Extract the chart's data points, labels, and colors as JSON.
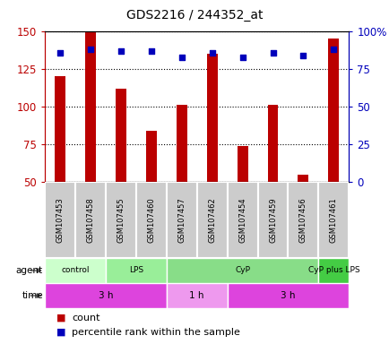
{
  "title": "GDS2216 / 244352_at",
  "samples": [
    "GSM107453",
    "GSM107458",
    "GSM107455",
    "GSM107460",
    "GSM107457",
    "GSM107462",
    "GSM107454",
    "GSM107459",
    "GSM107456",
    "GSM107461"
  ],
  "counts": [
    120,
    150,
    112,
    84,
    101,
    135,
    74,
    101,
    55,
    145
  ],
  "percentile_ranks": [
    86,
    88,
    87,
    87,
    83,
    86,
    83,
    86,
    84,
    88
  ],
  "ylim_left": [
    50,
    150
  ],
  "ylim_right": [
    0,
    100
  ],
  "yticks_left": [
    50,
    75,
    100,
    125,
    150
  ],
  "yticks_right": [
    0,
    25,
    50,
    75,
    100
  ],
  "ytick_labels_left": [
    "50",
    "75",
    "100",
    "125",
    "150"
  ],
  "ytick_labels_right": [
    "0",
    "25",
    "50",
    "75",
    "100%"
  ],
  "bar_color": "#bb0000",
  "dot_color": "#0000bb",
  "agent_groups": [
    {
      "label": "control",
      "start": 0,
      "end": 2
    },
    {
      "label": "LPS",
      "start": 2,
      "end": 4
    },
    {
      "label": "CyP",
      "start": 4,
      "end": 9
    },
    {
      "label": "CyP plus LPS",
      "start": 9,
      "end": 10
    }
  ],
  "agent_colors": [
    "#ccffcc",
    "#99ee99",
    "#88dd88",
    "#44cc44"
  ],
  "time_groups": [
    {
      "label": "3 h",
      "start": 0,
      "end": 4
    },
    {
      "label": "1 h",
      "start": 4,
      "end": 6
    },
    {
      "label": "3 h",
      "start": 6,
      "end": 10
    }
  ],
  "time_colors": [
    "#dd44dd",
    "#ee99ee",
    "#dd44dd"
  ],
  "sample_bg_color": "#cccccc",
  "sample_border_color": "#ffffff"
}
